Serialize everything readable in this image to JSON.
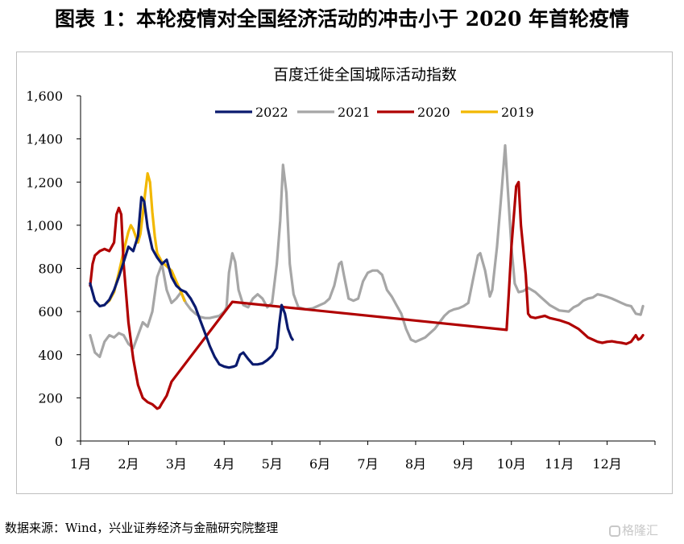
{
  "heading": "图表 1：本轮疫情对全国经济活动的冲击小于 2020 年首轮疫情",
  "source": "数据来源：Wind，兴业证券经济与金融研究院整理",
  "watermark": "格隆汇",
  "chart_data": {
    "type": "line",
    "title": "百度迁徙全国城际活动指数",
    "xlabel": "",
    "ylabel": "",
    "x_ticks": [
      "1月",
      "2月",
      "3月",
      "4月",
      "5月",
      "6月",
      "7月",
      "8月",
      "9月",
      "10月",
      "11月",
      "12月"
    ],
    "y_ticks": [
      "0",
      "200",
      "400",
      "600",
      "800",
      "1,000",
      "1,200",
      "1,400",
      "1,600"
    ],
    "ylim": [
      0,
      1600
    ],
    "xlim": [
      1,
      13
    ],
    "x_unit": "month",
    "grid": false,
    "legend": "top",
    "series": [
      {
        "name": "2022",
        "color": "#0a1a6e",
        "points": [
          [
            1.2,
            730
          ],
          [
            1.3,
            650
          ],
          [
            1.4,
            625
          ],
          [
            1.5,
            630
          ],
          [
            1.6,
            655
          ],
          [
            1.7,
            700
          ],
          [
            1.8,
            760
          ],
          [
            1.9,
            830
          ],
          [
            2.0,
            900
          ],
          [
            2.1,
            880
          ],
          [
            2.2,
            950
          ],
          [
            2.27,
            1130
          ],
          [
            2.33,
            1110
          ],
          [
            2.4,
            990
          ],
          [
            2.5,
            890
          ],
          [
            2.6,
            850
          ],
          [
            2.7,
            820
          ],
          [
            2.8,
            840
          ],
          [
            2.9,
            760
          ],
          [
            3.0,
            720
          ],
          [
            3.1,
            700
          ],
          [
            3.2,
            690
          ],
          [
            3.3,
            660
          ],
          [
            3.4,
            620
          ],
          [
            3.5,
            560
          ],
          [
            3.6,
            500
          ],
          [
            3.7,
            440
          ],
          [
            3.8,
            390
          ],
          [
            3.9,
            355
          ],
          [
            4.0,
            345
          ],
          [
            4.1,
            340
          ],
          [
            4.2,
            345
          ],
          [
            4.25,
            350
          ],
          [
            4.33,
            400
          ],
          [
            4.4,
            410
          ],
          [
            4.5,
            380
          ],
          [
            4.6,
            355
          ],
          [
            4.7,
            355
          ],
          [
            4.8,
            360
          ],
          [
            4.9,
            375
          ],
          [
            5.0,
            395
          ],
          [
            5.1,
            430
          ],
          [
            5.15,
            540
          ],
          [
            5.2,
            630
          ],
          [
            5.27,
            590
          ],
          [
            5.33,
            520
          ],
          [
            5.4,
            480
          ],
          [
            5.43,
            470
          ]
        ]
      },
      {
        "name": "2021",
        "color": "#a6a6a6",
        "points": [
          [
            1.2,
            490
          ],
          [
            1.3,
            410
          ],
          [
            1.4,
            390
          ],
          [
            1.5,
            460
          ],
          [
            1.6,
            490
          ],
          [
            1.7,
            480
          ],
          [
            1.8,
            500
          ],
          [
            1.9,
            490
          ],
          [
            2.0,
            450
          ],
          [
            2.1,
            430
          ],
          [
            2.2,
            490
          ],
          [
            2.3,
            550
          ],
          [
            2.4,
            530
          ],
          [
            2.5,
            600
          ],
          [
            2.6,
            760
          ],
          [
            2.7,
            820
          ],
          [
            2.8,
            700
          ],
          [
            2.9,
            640
          ],
          [
            3.0,
            660
          ],
          [
            3.1,
            690
          ],
          [
            3.2,
            640
          ],
          [
            3.3,
            610
          ],
          [
            3.4,
            590
          ],
          [
            3.5,
            575
          ],
          [
            3.6,
            570
          ],
          [
            3.7,
            570
          ],
          [
            3.8,
            575
          ],
          [
            3.9,
            580
          ],
          [
            4.0,
            600
          ],
          [
            4.05,
            620
          ],
          [
            4.1,
            780
          ],
          [
            4.17,
            870
          ],
          [
            4.23,
            830
          ],
          [
            4.3,
            700
          ],
          [
            4.4,
            630
          ],
          [
            4.5,
            620
          ],
          [
            4.6,
            660
          ],
          [
            4.7,
            680
          ],
          [
            4.8,
            660
          ],
          [
            4.9,
            620
          ],
          [
            5.0,
            640
          ],
          [
            5.1,
            820
          ],
          [
            5.17,
            1020
          ],
          [
            5.23,
            1280
          ],
          [
            5.3,
            1150
          ],
          [
            5.37,
            820
          ],
          [
            5.45,
            680
          ],
          [
            5.55,
            620
          ],
          [
            5.7,
            610
          ],
          [
            5.85,
            615
          ],
          [
            6.0,
            630
          ],
          [
            6.1,
            640
          ],
          [
            6.2,
            660
          ],
          [
            6.3,
            720
          ],
          [
            6.4,
            820
          ],
          [
            6.45,
            830
          ],
          [
            6.5,
            770
          ],
          [
            6.6,
            660
          ],
          [
            6.7,
            650
          ],
          [
            6.8,
            660
          ],
          [
            6.9,
            740
          ],
          [
            7.0,
            780
          ],
          [
            7.1,
            790
          ],
          [
            7.2,
            790
          ],
          [
            7.3,
            770
          ],
          [
            7.4,
            700
          ],
          [
            7.5,
            670
          ],
          [
            7.6,
            630
          ],
          [
            7.7,
            590
          ],
          [
            7.8,
            520
          ],
          [
            7.9,
            470
          ],
          [
            8.0,
            460
          ],
          [
            8.1,
            470
          ],
          [
            8.2,
            480
          ],
          [
            8.3,
            500
          ],
          [
            8.4,
            520
          ],
          [
            8.5,
            550
          ],
          [
            8.6,
            580
          ],
          [
            8.7,
            600
          ],
          [
            8.8,
            610
          ],
          [
            8.9,
            615
          ],
          [
            9.0,
            625
          ],
          [
            9.1,
            640
          ],
          [
            9.2,
            750
          ],
          [
            9.3,
            860
          ],
          [
            9.35,
            870
          ],
          [
            9.45,
            790
          ],
          [
            9.55,
            670
          ],
          [
            9.6,
            700
          ],
          [
            9.7,
            900
          ],
          [
            9.8,
            1170
          ],
          [
            9.87,
            1370
          ],
          [
            9.93,
            1150
          ],
          [
            10.0,
            900
          ],
          [
            10.07,
            730
          ],
          [
            10.15,
            690
          ],
          [
            10.25,
            695
          ],
          [
            10.35,
            710
          ],
          [
            10.5,
            690
          ],
          [
            10.6,
            670
          ],
          [
            10.8,
            630
          ],
          [
            11.0,
            605
          ],
          [
            11.2,
            600
          ],
          [
            11.3,
            620
          ],
          [
            11.4,
            630
          ],
          [
            11.5,
            650
          ],
          [
            11.6,
            660
          ],
          [
            11.7,
            665
          ],
          [
            11.8,
            680
          ],
          [
            11.9,
            675
          ],
          [
            12.0,
            668
          ],
          [
            12.1,
            660
          ],
          [
            12.2,
            650
          ],
          [
            12.3,
            640
          ],
          [
            12.4,
            630
          ],
          [
            12.5,
            625
          ],
          [
            12.6,
            590
          ],
          [
            12.7,
            585
          ],
          [
            12.75,
            625
          ]
        ]
      },
      {
        "name": "2020",
        "color": "#b00000",
        "points": [
          [
            1.2,
            720
          ],
          [
            1.25,
            820
          ],
          [
            1.3,
            860
          ],
          [
            1.4,
            880
          ],
          [
            1.5,
            890
          ],
          [
            1.6,
            880
          ],
          [
            1.7,
            920
          ],
          [
            1.75,
            1050
          ],
          [
            1.8,
            1080
          ],
          [
            1.85,
            1050
          ],
          [
            1.9,
            820
          ],
          [
            2.0,
            550
          ],
          [
            2.1,
            380
          ],
          [
            2.2,
            260
          ],
          [
            2.3,
            200
          ],
          [
            2.4,
            180
          ],
          [
            2.5,
            170
          ],
          [
            2.55,
            160
          ],
          [
            2.6,
            150
          ],
          [
            2.65,
            155
          ],
          [
            2.7,
            175
          ],
          [
            2.8,
            210
          ],
          [
            2.9,
            275
          ],
          [
            4.17,
            645
          ],
          [
            9.9,
            515
          ],
          [
            9.95,
            700
          ],
          [
            10.0,
            900
          ],
          [
            10.1,
            1180
          ],
          [
            10.15,
            1200
          ],
          [
            10.2,
            1000
          ],
          [
            10.3,
            770
          ],
          [
            10.35,
            590
          ],
          [
            10.4,
            575
          ],
          [
            10.5,
            570
          ],
          [
            10.6,
            575
          ],
          [
            10.7,
            580
          ],
          [
            10.8,
            570
          ],
          [
            11.0,
            560
          ],
          [
            11.2,
            545
          ],
          [
            11.4,
            520
          ],
          [
            11.5,
            500
          ],
          [
            11.6,
            480
          ],
          [
            11.7,
            470
          ],
          [
            11.8,
            460
          ],
          [
            11.9,
            455
          ],
          [
            12.0,
            460
          ],
          [
            12.1,
            462
          ],
          [
            12.2,
            458
          ],
          [
            12.3,
            455
          ],
          [
            12.4,
            450
          ],
          [
            12.5,
            460
          ],
          [
            12.6,
            490
          ],
          [
            12.65,
            470
          ],
          [
            12.7,
            475
          ],
          [
            12.75,
            490
          ]
        ]
      },
      {
        "name": "2019",
        "color": "#f2b800",
        "points": [
          [
            1.55,
            640
          ],
          [
            1.6,
            650
          ],
          [
            1.7,
            690
          ],
          [
            1.8,
            780
          ],
          [
            1.9,
            880
          ],
          [
            2.0,
            970
          ],
          [
            2.05,
            1000
          ],
          [
            2.1,
            980
          ],
          [
            2.15,
            950
          ],
          [
            2.2,
            920
          ],
          [
            2.25,
            960
          ],
          [
            2.3,
            1050
          ],
          [
            2.35,
            1150
          ],
          [
            2.4,
            1240
          ],
          [
            2.45,
            1200
          ],
          [
            2.5,
            1060
          ],
          [
            2.55,
            950
          ],
          [
            2.6,
            870
          ],
          [
            2.7,
            830
          ],
          [
            2.8,
            810
          ],
          [
            2.9,
            790
          ],
          [
            3.0,
            740
          ],
          [
            3.1,
            690
          ],
          [
            3.17,
            650
          ]
        ]
      }
    ]
  }
}
